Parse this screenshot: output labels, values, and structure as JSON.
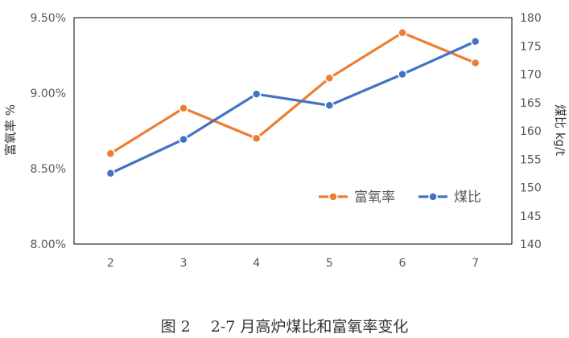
{
  "chart_data": {
    "type": "line",
    "categories": [
      "2",
      "3",
      "4",
      "5",
      "6",
      "7"
    ],
    "series": [
      {
        "name": "富氧率",
        "axis": "left",
        "color": "#ED7D31",
        "values": [
          8.6,
          8.9,
          8.7,
          9.1,
          9.4,
          9.2
        ]
      },
      {
        "name": "煤比",
        "axis": "right",
        "color": "#4472C4",
        "values": [
          152.5,
          158.5,
          166.5,
          164.5,
          170.0,
          175.8
        ]
      }
    ],
    "y_left": {
      "label": "富氧率 %",
      "min": 8.0,
      "max": 9.5,
      "ticks": [
        "8.00%",
        "8.50%",
        "9.00%",
        "9.50%"
      ],
      "tick_values": [
        8.0,
        8.5,
        9.0,
        9.5
      ]
    },
    "y_right": {
      "label": "煤比 kg/t",
      "min": 140,
      "max": 180,
      "ticks": [
        "140",
        "145",
        "150",
        "155",
        "160",
        "165",
        "170",
        "175",
        "180"
      ],
      "tick_values": [
        140,
        145,
        150,
        155,
        160,
        165,
        170,
        175,
        180
      ]
    },
    "grid": false,
    "legend_position": "inside-right",
    "caption": "图 2　 2-7 月高炉煤比和富氧率变化"
  }
}
